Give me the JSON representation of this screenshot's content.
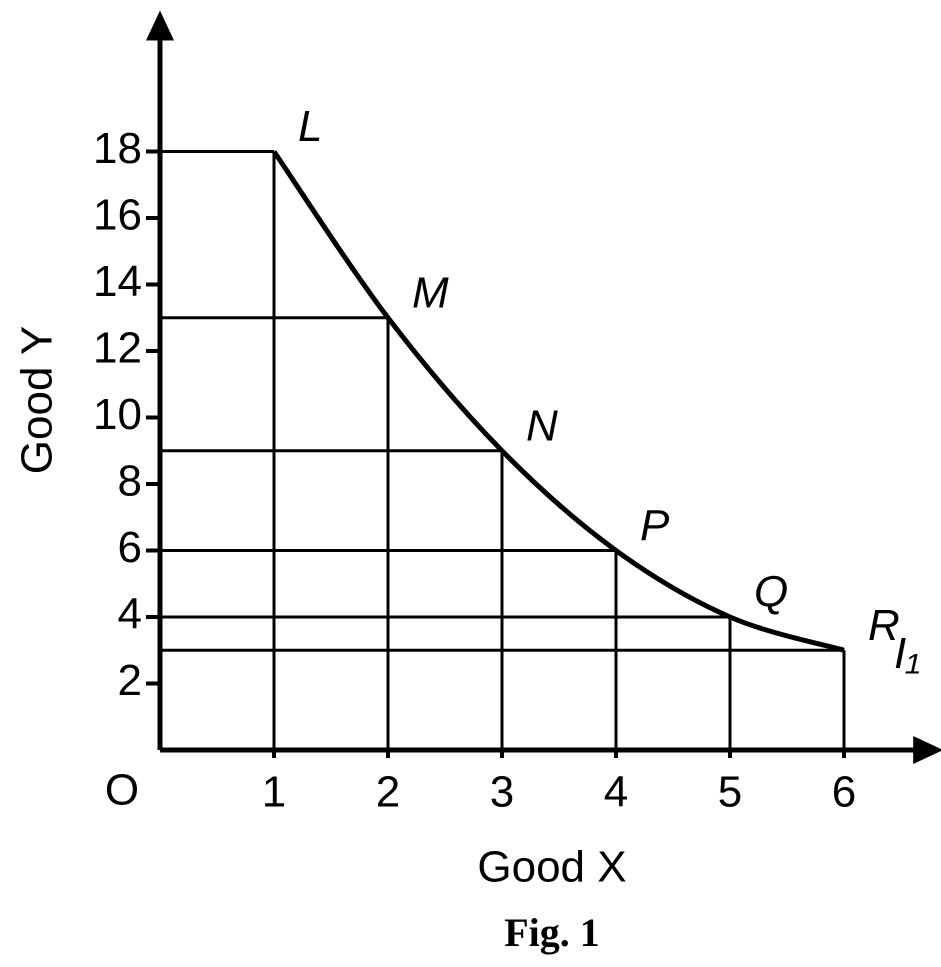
{
  "chart_data": {
    "type": "line",
    "caption": "Fig. 1",
    "x_label": "Good X",
    "y_label": "Good Y",
    "origin_label": "O",
    "x": [
      1,
      2,
      3,
      4,
      5,
      6
    ],
    "series": [
      {
        "name": "I₁",
        "color": "#000000",
        "values": [
          18,
          13,
          9,
          6,
          4,
          3
        ],
        "point_labels": [
          "L",
          "M",
          "N",
          "P",
          "Q",
          "R"
        ]
      }
    ],
    "xlim": [
      0,
      6.8
    ],
    "ylim": [
      0,
      22
    ],
    "xticks": [
      1,
      2,
      3,
      4,
      5,
      6
    ],
    "yticks": [
      2,
      4,
      6,
      8,
      10,
      12,
      14,
      16,
      18
    ],
    "drop_lines": true
  }
}
